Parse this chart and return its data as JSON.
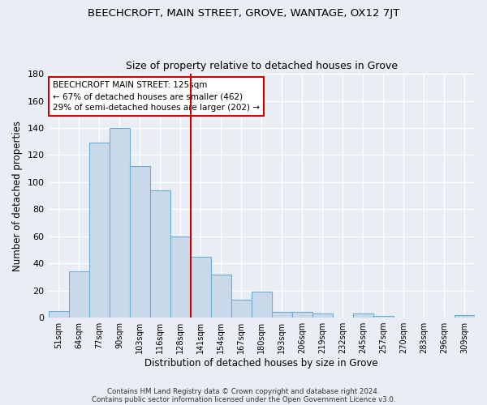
{
  "title": "BEECHCROFT, MAIN STREET, GROVE, WANTAGE, OX12 7JT",
  "subtitle": "Size of property relative to detached houses in Grove",
  "xlabel": "Distribution of detached houses by size in Grove",
  "ylabel": "Number of detached properties",
  "categories": [
    "51sqm",
    "64sqm",
    "77sqm",
    "90sqm",
    "103sqm",
    "116sqm",
    "128sqm",
    "141sqm",
    "154sqm",
    "167sqm",
    "180sqm",
    "193sqm",
    "206sqm",
    "219sqm",
    "232sqm",
    "245sqm",
    "257sqm",
    "270sqm",
    "283sqm",
    "296sqm",
    "309sqm"
  ],
  "values": [
    5,
    34,
    129,
    140,
    112,
    94,
    60,
    45,
    32,
    13,
    19,
    4,
    4,
    3,
    0,
    3,
    1,
    0,
    0,
    0,
    2
  ],
  "bar_color": "#c9d9ea",
  "bar_edge_color": "#6aaed6",
  "ylim": [
    0,
    180
  ],
  "yticks": [
    0,
    20,
    40,
    60,
    80,
    100,
    120,
    140,
    160,
    180
  ],
  "vline_color": "#cc0000",
  "annotation_title": "BEECHCROFT MAIN STREET: 125sqm",
  "annotation_line1": "← 67% of detached houses are smaller (462)",
  "annotation_line2": "29% of semi-detached houses are larger (202) →",
  "annotation_box_color": "#ffffff",
  "annotation_box_edge": "#cc0000",
  "footer1": "Contains HM Land Registry data © Crown copyright and database right 2024.",
  "footer2": "Contains public sector information licensed under the Open Government Licence v3.0.",
  "fig_bg_color": "#e8eef4",
  "plot_bg_color": "#e8eef4",
  "grid_color": "#ffffff"
}
